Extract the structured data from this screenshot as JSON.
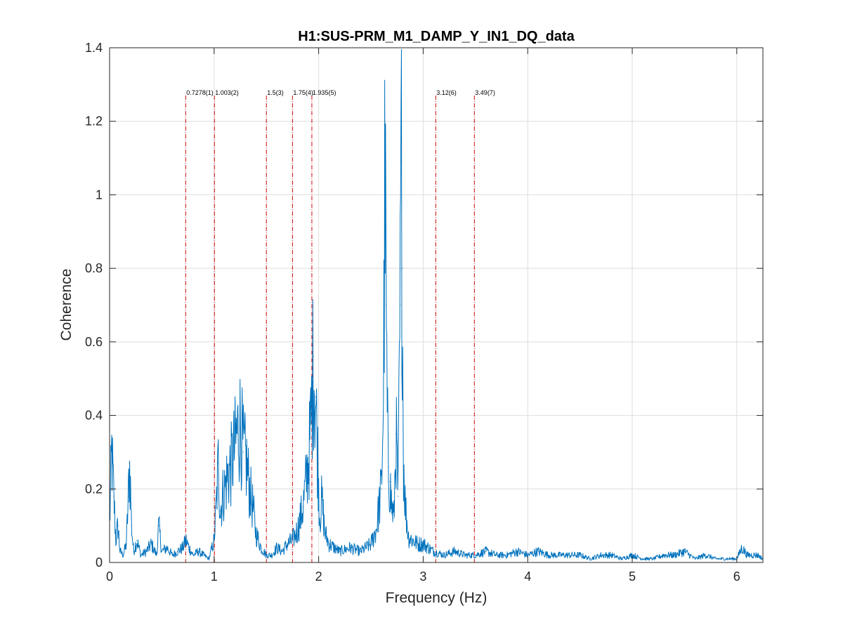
{
  "chart_data": {
    "type": "line",
    "title": "H1:SUS-PRM_M1_DAMP_Y_IN1_DQ_data",
    "xlabel": "Frequency (Hz)",
    "ylabel": "Coherence",
    "xlim": [
      0,
      6.25
    ],
    "ylim": [
      0,
      1.4
    ],
    "xticks": [
      0,
      1,
      2,
      3,
      4,
      5,
      6
    ],
    "yticks": [
      0,
      0.2,
      0.4,
      0.6,
      0.8,
      1,
      1.2,
      1.4
    ],
    "xtick_labels": [
      "0",
      "1",
      "2",
      "3",
      "4",
      "5",
      "6"
    ],
    "ytick_labels": [
      "0",
      "0.2",
      "0.4",
      "0.6",
      "0.8",
      "1",
      "1.2",
      "1.4"
    ],
    "grid": true,
    "colors": {
      "series": "#0072bd",
      "markers": "#cc0000",
      "grid": "#dedede"
    },
    "markers": [
      {
        "x": 0.7278,
        "label": "0.7278(1)"
      },
      {
        "x": 1.003,
        "label": "1.003(2)"
      },
      {
        "x": 1.5,
        "label": "1.5(3)"
      },
      {
        "x": 1.75,
        "label": "1.75(4)"
      },
      {
        "x": 1.935,
        "label": "1.935(5)"
      },
      {
        "x": 3.12,
        "label": "3.12(6)"
      },
      {
        "x": 3.49,
        "label": "3.49(7)"
      }
    ],
    "marker_top_y": 1.27,
    "series": [
      {
        "x": [
          0,
          0.02,
          0.04,
          0.06,
          0.08,
          0.1,
          0.13,
          0.16,
          0.18,
          0.19,
          0.2,
          0.21,
          0.23,
          0.26,
          0.3,
          0.35,
          0.4,
          0.45,
          0.47,
          0.5,
          0.55,
          0.6,
          0.65,
          0.7,
          0.73,
          0.76,
          0.8,
          0.85,
          0.9,
          0.95,
          1.0,
          1.02,
          1.04,
          1.06,
          1.08,
          1.1,
          1.13,
          1.16,
          1.19,
          1.22,
          1.25,
          1.28,
          1.31,
          1.34,
          1.37,
          1.4,
          1.45,
          1.5,
          1.55,
          1.6,
          1.65,
          1.7,
          1.75,
          1.8,
          1.85,
          1.88,
          1.91,
          1.93,
          1.95,
          1.97,
          1.99,
          2.01,
          2.03,
          2.06,
          2.1,
          2.15,
          2.2,
          2.3,
          2.4,
          2.5,
          2.55,
          2.6,
          2.62,
          2.635,
          2.645,
          2.655,
          2.665,
          2.68,
          2.7,
          2.72,
          2.74,
          2.76,
          2.78,
          2.79,
          2.8,
          2.81,
          2.83,
          2.86,
          2.9,
          2.95,
          3.0,
          3.05,
          3.1,
          3.2,
          3.3,
          3.4,
          3.5,
          3.6,
          3.7,
          3.8,
          3.9,
          4.0,
          4.1,
          4.2,
          4.3,
          4.4,
          4.5,
          4.6,
          4.7,
          4.8,
          4.9,
          5.0,
          5.1,
          5.2,
          5.3,
          5.4,
          5.5,
          5.6,
          5.7,
          5.8,
          5.9,
          6.0,
          6.05,
          6.1,
          6.2,
          6.25
        ],
        "y": [
          0.1,
          0.3,
          0.18,
          0.06,
          0.1,
          0.03,
          0.02,
          0.05,
          0.18,
          0.27,
          0.2,
          0.1,
          0.03,
          0.06,
          0.02,
          0.03,
          0.05,
          0.02,
          0.1,
          0.03,
          0.04,
          0.02,
          0.03,
          0.04,
          0.06,
          0.04,
          0.02,
          0.03,
          0.02,
          0.01,
          0.06,
          0.15,
          0.27,
          0.14,
          0.18,
          0.2,
          0.24,
          0.26,
          0.3,
          0.35,
          0.38,
          0.3,
          0.27,
          0.2,
          0.15,
          0.08,
          0.04,
          0.02,
          0.02,
          0.04,
          0.03,
          0.05,
          0.06,
          0.09,
          0.15,
          0.22,
          0.3,
          0.4,
          0.56,
          0.45,
          0.3,
          0.12,
          0.17,
          0.08,
          0.05,
          0.04,
          0.03,
          0.04,
          0.03,
          0.05,
          0.09,
          0.2,
          0.47,
          1.07,
          0.7,
          0.41,
          0.26,
          0.22,
          0.15,
          0.12,
          0.35,
          0.18,
          0.7,
          1.09,
          0.8,
          0.3,
          0.15,
          0.07,
          0.06,
          0.05,
          0.05,
          0.04,
          0.03,
          0.02,
          0.03,
          0.02,
          0.02,
          0.03,
          0.02,
          0.02,
          0.03,
          0.02,
          0.03,
          0.02,
          0.02,
          0.02,
          0.02,
          0.01,
          0.02,
          0.02,
          0.01,
          0.02,
          0.01,
          0.01,
          0.02,
          0.02,
          0.03,
          0.01,
          0.02,
          0.01,
          0.01,
          0.01,
          0.04,
          0.02,
          0.02,
          0.01
        ]
      }
    ]
  }
}
